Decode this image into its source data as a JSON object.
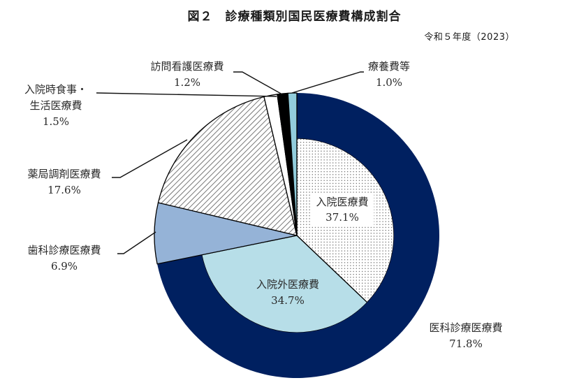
{
  "figure": {
    "title": "図２　診療種類別国民医療費構成割合",
    "subtitle": "令和５年度（2023）"
  },
  "chart_data": {
    "type": "pie",
    "title": "図２　診療種類別国民医療費構成割合",
    "subtitle": "令和５年度（2023）",
    "unit": "%",
    "start_angle": "12 o'clock, clockwise",
    "outer_ring": [
      {
        "label": "医科診療医療費",
        "value": 71.8,
        "color": "#002060",
        "pattern": "solid",
        "ring_only": true
      },
      {
        "label": "歯科診療医療費",
        "value": 6.9,
        "color": "#95B3D7",
        "pattern": "solid"
      },
      {
        "label": "薬局調剤医療費",
        "value": 17.6,
        "color": "#FFFFFF",
        "pattern": "hatch"
      },
      {
        "label": "入院時食事・生活医療費",
        "value": 1.5,
        "color": "#FFFFFF",
        "pattern": "solid"
      },
      {
        "label": "訪問看護医療費",
        "value": 1.2,
        "color": "#000000",
        "pattern": "solid"
      },
      {
        "label": "療養費等",
        "value": 1.0,
        "color": "#92CDDC",
        "pattern": "solid"
      }
    ],
    "inner_breakdown": {
      "parent": "医科診療医療費",
      "slices": [
        {
          "label": "入院医療費",
          "value": 37.1,
          "color": "#FFFFFF",
          "pattern": "dots"
        },
        {
          "label": "入院外医療費",
          "value": 34.7,
          "color": "#B7DEE8",
          "pattern": "solid"
        }
      ]
    },
    "legend": "none (direct labels with leader lines)"
  },
  "labels": {
    "ika": {
      "name": "医科診療医療費",
      "pct": "71.8%"
    },
    "nyuin": {
      "name": "入院医療費",
      "pct": "37.1%"
    },
    "nyuingai": {
      "name": "入院外医療費",
      "pct": "34.7%"
    },
    "shika": {
      "name": "歯科診療医療費",
      "pct": "6.9%"
    },
    "yakkyoku": {
      "name": "薬局調剤医療費",
      "pct": "17.6%"
    },
    "shokuji": {
      "name_line1": "入院時食事・",
      "name_line2": "生活医療費",
      "pct": "1.5%"
    },
    "houmon": {
      "name": "訪問看護医療費",
      "pct": "1.2%"
    },
    "ryouyou": {
      "name": "療養費等",
      "pct": "1.0%"
    }
  }
}
